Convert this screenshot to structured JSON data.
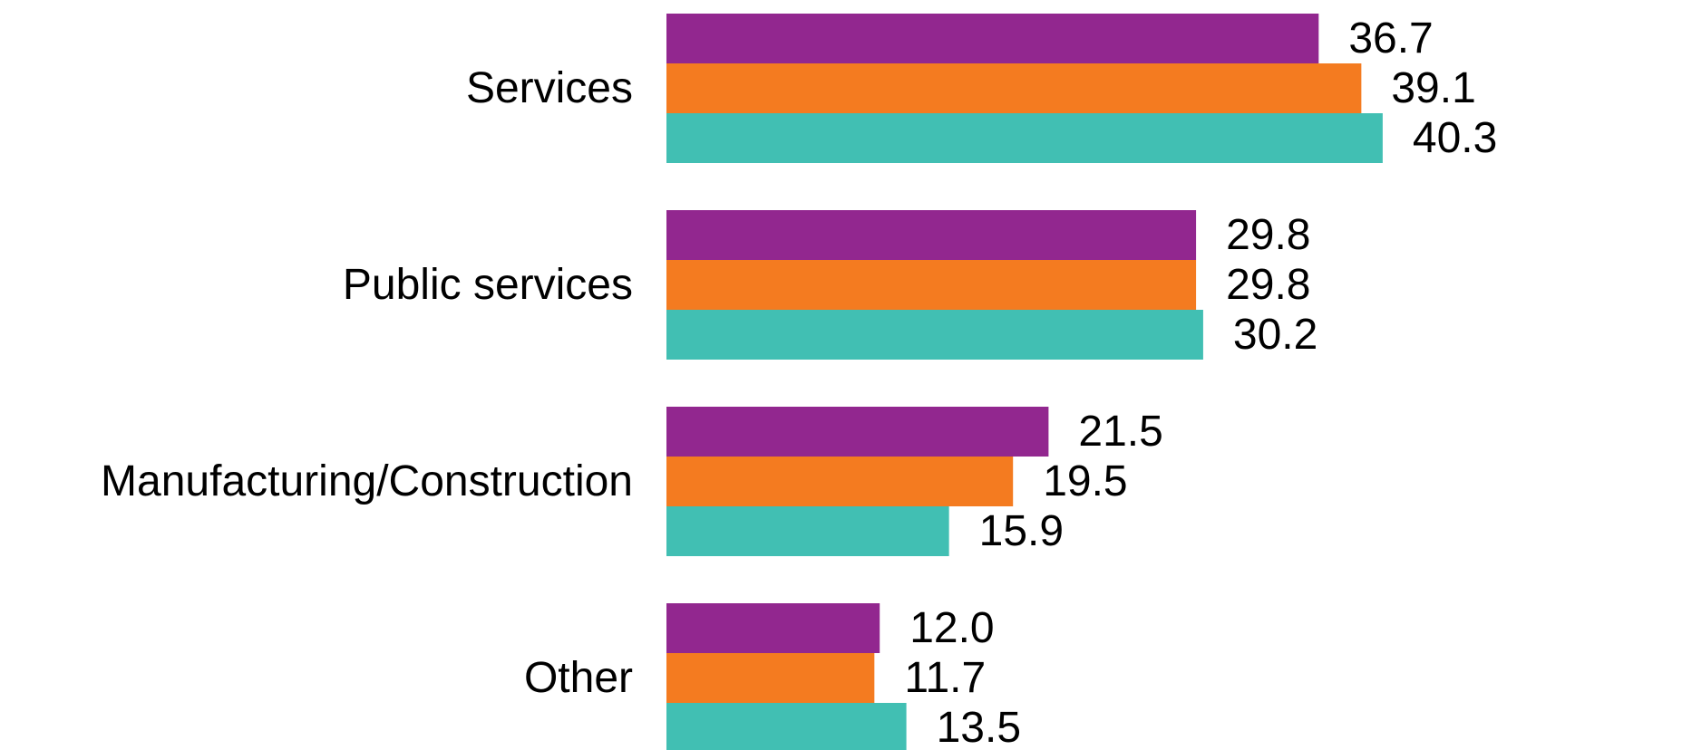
{
  "chart_data": {
    "type": "bar",
    "orientation": "horizontal",
    "categories": [
      "Services",
      "Public services",
      "Manufacturing/Construction",
      "Other"
    ],
    "series": [
      {
        "color": "#92278F",
        "values": [
          36.7,
          29.8,
          21.5,
          12.0
        ],
        "labels": [
          "36.7",
          "29.8",
          "21.5",
          "12.0"
        ]
      },
      {
        "color": "#F47B20",
        "values": [
          39.1,
          29.8,
          19.5,
          11.7
        ],
        "labels": [
          "39.1",
          "29.8",
          "19.5",
          "11.7"
        ]
      },
      {
        "color": "#41BFB3",
        "values": [
          40.3,
          30.2,
          15.9,
          13.5
        ],
        "labels": [
          "40.3",
          "30.2",
          "15.9",
          "13.5"
        ]
      }
    ],
    "title": "",
    "xlabel": "",
    "ylabel": "",
    "grid": false,
    "legend": "none",
    "data_labels": true
  }
}
